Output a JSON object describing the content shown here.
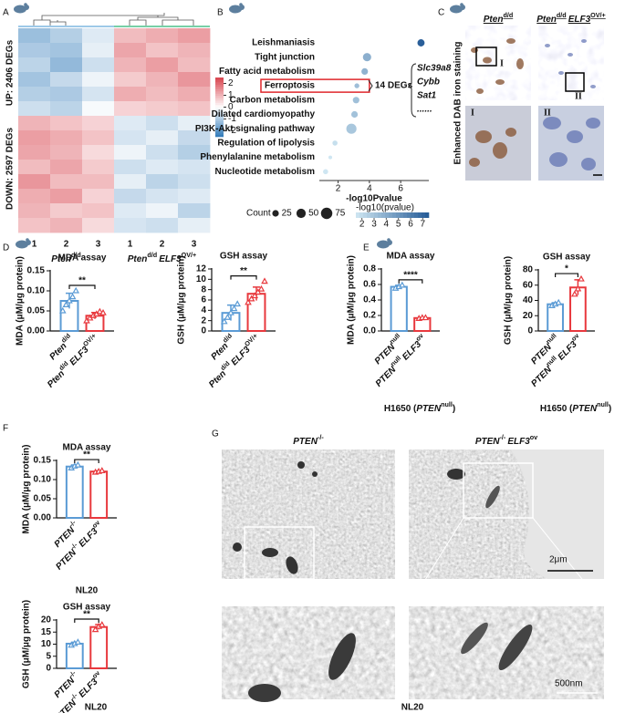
{
  "panel_labels": [
    "A",
    "B",
    "C",
    "D",
    "E",
    "F",
    "G"
  ],
  "chart_data": [
    {
      "type": "heatmap",
      "annotations": [
        "DOWN: 2597 DEGs",
        "UP: 2406 DEGs"
      ],
      "categories": [
        "1",
        "2",
        "3",
        "1",
        "2",
        "3"
      ],
      "groups": [
        [
          {
            "text": "Pten",
            "i": true
          },
          {
            "text": "d/d",
            "sup": true
          }
        ],
        [
          {
            "text": "Pten",
            "i": true
          },
          {
            "text": "d/d",
            "sup": true
          },
          {
            "text": "ELF3",
            "i": true
          },
          {
            "text": "OV/+",
            "sup": true
          }
        ]
      ],
      "values": [
        [
          -1.2,
          -0.9,
          -0.4,
          0.9,
          1.1,
          1.3
        ],
        [
          -1.0,
          -1.1,
          -0.3,
          1.2,
          0.8,
          1.0
        ],
        [
          -0.8,
          -1.3,
          -0.6,
          1.0,
          1.3,
          0.9
        ],
        [
          -1.1,
          -0.7,
          -0.2,
          0.7,
          1.0,
          1.4
        ],
        [
          -0.9,
          -1.0,
          -0.5,
          1.1,
          0.9,
          1.1
        ],
        [
          -0.6,
          -0.8,
          -0.1,
          0.6,
          0.7,
          0.8
        ],
        [
          1.0,
          0.8,
          0.6,
          -0.4,
          -0.6,
          -0.3
        ],
        [
          1.3,
          1.1,
          0.8,
          -0.5,
          -0.3,
          -0.7
        ],
        [
          1.2,
          1.0,
          0.5,
          -0.2,
          -0.6,
          -0.9
        ],
        [
          0.9,
          1.2,
          0.7,
          -0.6,
          -0.4,
          -0.5
        ],
        [
          1.4,
          0.9,
          0.9,
          -0.3,
          -0.8,
          -0.6
        ],
        [
          1.1,
          1.3,
          0.6,
          -0.7,
          -0.5,
          -0.4
        ],
        [
          1.0,
          0.7,
          0.8,
          -0.4,
          -0.2,
          -0.8
        ],
        [
          0.8,
          1.0,
          0.5,
          -0.5,
          -0.6,
          -0.3
        ]
      ],
      "clim": [
        -2.5,
        2.5
      ],
      "ticks": [
        2,
        1,
        0,
        -1,
        -2
      ],
      "colors": [
        "#2f79b8",
        "#ffffff",
        "#d8444e"
      ]
    },
    {
      "type": "dot",
      "categories": [
        "Leishmaniasis",
        "Tight junction",
        "Fatty acid metabolism",
        "Ferroptosis",
        "Carbon metabolism",
        "Dilated cardiomyopathy",
        "PI3K-Akt signaling pathway",
        "Regulation of lipolysis",
        "Phenylalanine metabolism",
        "Nucleotide metabolism"
      ],
      "values": [
        7.3,
        3.85,
        3.7,
        3.2,
        3.15,
        3.05,
        2.85,
        1.8,
        1.5,
        1.2
      ],
      "sizes": [
        30,
        40,
        25,
        14,
        25,
        25,
        60,
        15,
        8,
        15
      ],
      "xlabel": "-log10Pvalue",
      "xlim": [
        0.8,
        7.8
      ],
      "xticks": [
        2,
        4,
        6
      ],
      "highlight": 3,
      "highlight_color": "#e0262b",
      "annotation": "14 DEGs",
      "genes": [
        "Slc39a8",
        "Cybb",
        "Sat1",
        "......"
      ],
      "size_legend": {
        "title": "Count",
        "values": [
          25,
          50,
          75
        ]
      },
      "color_legend": {
        "title": "-log10(pvalue)",
        "ticks": [
          2,
          3,
          4,
          5,
          6,
          7
        ],
        "lim": [
          1.5,
          7.5
        ]
      },
      "colors": [
        "#cfe6f2",
        "#245a96"
      ]
    },
    {
      "type": "bar",
      "title": "MDA assay",
      "ylabel": "MDA (μM/μg protein)",
      "categories": [
        [
          {
            "text": "Pten",
            "i": true
          },
          {
            "text": "d/d",
            "sup": true
          }
        ],
        [
          {
            "text": "Pten",
            "i": true
          },
          {
            "text": "d/d",
            "sup": true
          },
          {
            "text": "ELF3",
            "i": true
          },
          {
            "text": "OV/+",
            "sup": true
          }
        ]
      ],
      "values": [
        0.075,
        0.038
      ],
      "errors": [
        0.019,
        0.008
      ],
      "points": [
        [
          0.05,
          0.065,
          0.075,
          0.085,
          0.1
        ],
        [
          0.025,
          0.032,
          0.038,
          0.042,
          0.048,
          0.045
        ]
      ],
      "colors": [
        "#5b9bd5",
        "#e8383d"
      ],
      "ylim": [
        0,
        0.15
      ],
      "yticks": [
        {
          "value": 0,
          "label": "0.00"
        },
        {
          "value": 0.05,
          "label": "0.05"
        },
        {
          "value": 0.1,
          "label": "0.10"
        },
        {
          "value": 0.15,
          "label": "0.15"
        }
      ],
      "significance": "**"
    },
    {
      "type": "bar",
      "title": "GSH assay",
      "ylabel": "GSH (μM/μg protein)",
      "categories": [
        [
          {
            "text": "Pten",
            "i": true
          },
          {
            "text": "d/d",
            "sup": true
          }
        ],
        [
          {
            "text": "Pten",
            "i": true
          },
          {
            "text": "d/d",
            "sup": true
          },
          {
            "text": "ELF3",
            "i": true
          },
          {
            "text": "OV/+",
            "sup": true
          }
        ]
      ],
      "values": [
        3.5,
        7.2
      ],
      "errors": [
        1.5,
        1.3
      ],
      "points": [
        [
          1.8,
          2.6,
          3.5,
          4.3,
          5.2
        ],
        [
          5.5,
          6.2,
          6.8,
          7.5,
          8.1,
          9.6
        ]
      ],
      "colors": [
        "#5b9bd5",
        "#e8383d"
      ],
      "ylim": [
        0,
        12
      ],
      "yticks": [
        0,
        2,
        4,
        6,
        8,
        10,
        12
      ],
      "significance": "**"
    },
    {
      "type": "bar",
      "title": "MDA assay",
      "ylabel": "MDA (μM/μg protein)",
      "categories": [
        [
          {
            "text": "PTEN",
            "i": true
          },
          {
            "text": "null",
            "sup": true
          }
        ],
        [
          {
            "text": "PTEN",
            "i": true
          },
          {
            "text": "null",
            "sup": true
          },
          {
            "text": "ELF3",
            "i": true
          },
          {
            "text": "ov",
            "sup": true
          }
        ]
      ],
      "xlabel": [
        {
          "text": "H1650 ("
        },
        {
          "text": "PTEN",
          "i": true
        },
        {
          "text": "null",
          "sup": true
        },
        {
          "text": ")"
        }
      ],
      "values": [
        0.57,
        0.167
      ],
      "errors": [
        0.02,
        0.006
      ],
      "points": [
        [
          0.55,
          0.57,
          0.59
        ],
        [
          0.16,
          0.17,
          0.17
        ]
      ],
      "colors": [
        "#5b9bd5",
        "#e8383d"
      ],
      "ylim": [
        0,
        0.8
      ],
      "yticks": [
        {
          "value": 0,
          "label": "0.0"
        },
        {
          "value": 0.2,
          "label": "0.2"
        },
        {
          "value": 0.4,
          "label": "0.4"
        },
        {
          "value": 0.6,
          "label": "0.6"
        },
        {
          "value": 0.8,
          "label": "0.8"
        }
      ],
      "significance": "****"
    },
    {
      "type": "bar",
      "title": "GSH assay",
      "ylabel": "GSH (μM/μg protein)",
      "categories": [
        [
          {
            "text": "PTEN",
            "i": true
          },
          {
            "text": "null",
            "sup": true
          }
        ],
        [
          {
            "text": "PTEN",
            "i": true
          },
          {
            "text": "null",
            "sup": true
          },
          {
            "text": "ELF3",
            "i": true
          },
          {
            "text": "ov",
            "sup": true
          }
        ]
      ],
      "xlabel": [
        {
          "text": "H1650 ("
        },
        {
          "text": "PTEN",
          "i": true
        },
        {
          "text": "null",
          "sup": true
        },
        {
          "text": ")"
        }
      ],
      "values": [
        35,
        57
      ],
      "errors": [
        2,
        10
      ],
      "points": [
        [
          33,
          35,
          37
        ],
        [
          48,
          55,
          68
        ]
      ],
      "colors": [
        "#5b9bd5",
        "#e8383d"
      ],
      "ylim": [
        0,
        80
      ],
      "yticks": [
        0,
        20,
        40,
        60,
        80
      ],
      "significance": "*"
    },
    {
      "type": "bar",
      "title": "MDA assay",
      "ylabel": "MDA (μM/μg protein)",
      "categories": [
        [
          {
            "text": "PTEN",
            "i": true
          },
          {
            "text": "-/-",
            "sup": true
          }
        ],
        [
          {
            "text": "PTEN",
            "i": true
          },
          {
            "text": "-/-",
            "sup": true
          },
          {
            "text": "ELF3",
            "i": true
          },
          {
            "text": "ov",
            "sup": true
          }
        ]
      ],
      "xlabel": "NL20",
      "values": [
        0.134,
        0.121
      ],
      "errors": [
        0.004,
        0.002
      ],
      "points": [
        [
          0.13,
          0.135,
          0.138
        ],
        [
          0.119,
          0.121,
          0.123
        ]
      ],
      "colors": [
        "#5b9bd5",
        "#e8383d"
      ],
      "ylim": [
        0,
        0.15
      ],
      "yticks": [
        {
          "value": 0,
          "label": "0.00"
        },
        {
          "value": 0.05,
          "label": "0.05"
        },
        {
          "value": 0.1,
          "label": "0.10"
        },
        {
          "value": 0.15,
          "label": "0.15"
        }
      ],
      "significance": "**"
    },
    {
      "type": "bar",
      "title": "GSH assay",
      "ylabel": "GSH (μM/μg protein)",
      "categories": [
        [
          {
            "text": "PTEN",
            "i": true
          },
          {
            "text": "-/-",
            "sup": true
          }
        ],
        [
          {
            "text": "PTEN",
            "i": true
          },
          {
            "text": "-/-",
            "sup": true
          },
          {
            "text": "ELF3",
            "i": true
          },
          {
            "text": "ov",
            "sup": true
          }
        ]
      ],
      "xlabel": "NL20",
      "values": [
        10.2,
        17.1
      ],
      "errors": [
        0.6,
        1.0
      ],
      "points": [
        [
          9.5,
          10.2,
          10.8
        ],
        [
          16,
          17.3,
          18
        ]
      ],
      "colors": [
        "#5b9bd5",
        "#e8383d"
      ],
      "ylim": [
        0,
        20
      ],
      "yticks": [
        0,
        5,
        10,
        15,
        20
      ],
      "significance": "**"
    }
  ],
  "staining": {
    "columns": [
      [
        {
          "text": "Pten",
          "i": true
        },
        {
          "text": "d/d",
          "sup": true
        }
      ],
      [
        {
          "text": "Pten",
          "i": true
        },
        {
          "text": "d/d",
          "sup": true
        },
        {
          "text": "ELF3",
          "i": true
        },
        {
          "text": "OV/+",
          "sup": true
        }
      ]
    ],
    "ylabel": "Enhanced DAB iron staining",
    "insets": [
      "I",
      "II",
      "I",
      "II"
    ]
  },
  "em": {
    "columns": [
      [
        {
          "text": "PTEN",
          "i": true
        },
        {
          "text": "-/-",
          "sup": true
        }
      ],
      [
        {
          "text": "PTEN",
          "i": true
        },
        {
          "text": "-/-",
          "sup": true
        },
        {
          "text": "ELF3",
          "i": true
        },
        {
          "text": "ov",
          "sup": true
        }
      ]
    ],
    "scale_bars": [
      "2μm",
      "500nm"
    ],
    "caption": "NL20"
  }
}
